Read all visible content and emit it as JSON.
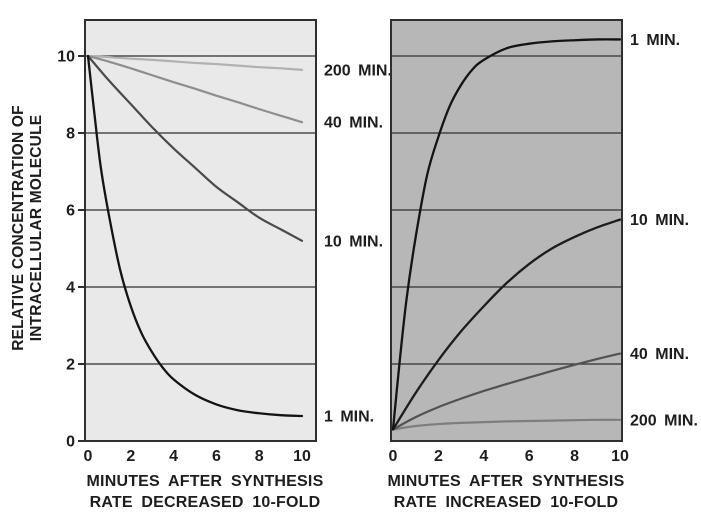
{
  "figure": {
    "ylabel": [
      "RELATIVE CONCENTRATION OF",
      "INTRACELLULAR MOLECULE"
    ],
    "text_color": "#1d1d1d",
    "frame_color": "#2f2f2f"
  },
  "chart_data": [
    {
      "type": "line",
      "panel": "synthesis-rate-decreased",
      "xlabel": [
        "MINUTES AFTER SYNTHESIS",
        "RATE DECREASED 10-FOLD"
      ],
      "ylabel": [
        "RELATIVE CONCENTRATION OF",
        "INTRACELLULAR MOLECULE"
      ],
      "xlim": [
        0,
        10
      ],
      "ylim": [
        0,
        10.9
      ],
      "xticks": [
        "0",
        "2",
        "4",
        "6",
        "8",
        "10"
      ],
      "yticks": [
        "0",
        "2",
        "4",
        "6",
        "8",
        "10"
      ],
      "grid": "horizontal",
      "legend_position": "right-gutter",
      "background": "#e9e9e9",
      "series": [
        {
          "name": "200 MIN.",
          "color": "#b1b1b1",
          "width": 2.2,
          "x": [
            0,
            1,
            2,
            3,
            4,
            5,
            6,
            7,
            8,
            9,
            10
          ],
          "y": [
            10,
            9.97,
            9.93,
            9.9,
            9.86,
            9.82,
            9.79,
            9.75,
            9.71,
            9.68,
            9.64
          ]
        },
        {
          "name": "40 MIN.",
          "color": "#8e8e8e",
          "width": 2.2,
          "x": [
            0,
            1,
            2,
            3,
            4,
            5,
            6,
            7,
            8,
            9,
            10
          ],
          "y": [
            10,
            9.85,
            9.68,
            9.5,
            9.32,
            9.15,
            8.97,
            8.8,
            8.62,
            8.45,
            8.28
          ]
        },
        {
          "name": "10 MIN.",
          "color": "#4a4a4a",
          "width": 2.2,
          "x": [
            0,
            1,
            2,
            3,
            4,
            5,
            6,
            7,
            8,
            9,
            10
          ],
          "y": [
            10,
            9.35,
            8.75,
            8.15,
            7.6,
            7.1,
            6.6,
            6.2,
            5.8,
            5.5,
            5.2
          ]
        },
        {
          "name": "1 MIN.",
          "color": "#141414",
          "width": 2.3,
          "x": [
            0,
            0.3,
            0.6,
            1,
            1.5,
            2,
            2.5,
            3,
            3.5,
            4,
            5,
            6,
            7,
            8,
            9,
            10
          ],
          "y": [
            10,
            8.5,
            7.1,
            5.8,
            4.45,
            3.5,
            2.8,
            2.3,
            1.9,
            1.6,
            1.2,
            0.95,
            0.8,
            0.72,
            0.67,
            0.65
          ]
        }
      ]
    },
    {
      "type": "line",
      "panel": "synthesis-rate-increased",
      "xlabel": [
        "MINUTES AFTER SYNTHESIS",
        "RATE INCREASED 10-FOLD"
      ],
      "xlim": [
        0,
        10
      ],
      "ylim": [
        0,
        10.9
      ],
      "xticks": [
        "0",
        "2",
        "4",
        "6",
        "8",
        "10"
      ],
      "yticks": [],
      "grid": "horizontal",
      "legend_position": "right-gutter",
      "background": "#b7b7b7",
      "series": [
        {
          "name": "200 MIN.",
          "color": "#7d7d7d",
          "width": 2.2,
          "x": [
            0,
            1,
            2,
            3,
            4,
            5,
            6,
            7,
            8,
            9,
            10
          ],
          "y": [
            0.3,
            0.39,
            0.44,
            0.47,
            0.49,
            0.51,
            0.52,
            0.53,
            0.54,
            0.55,
            0.55
          ]
        },
        {
          "name": "40 MIN.",
          "color": "#525252",
          "width": 2.2,
          "x": [
            0,
            1,
            2,
            3,
            4,
            5,
            6,
            7,
            8,
            9,
            10
          ],
          "y": [
            0.3,
            0.62,
            0.88,
            1.1,
            1.3,
            1.48,
            1.65,
            1.82,
            1.98,
            2.13,
            2.27
          ]
        },
        {
          "name": "10 MIN.",
          "color": "#1c1c1c",
          "width": 2.3,
          "x": [
            0,
            1,
            2,
            3,
            4,
            5,
            6,
            7,
            8,
            9,
            10
          ],
          "y": [
            0.3,
            1.25,
            2.1,
            2.85,
            3.5,
            4.1,
            4.6,
            5.0,
            5.3,
            5.55,
            5.75
          ]
        },
        {
          "name": "1 MIN.",
          "color": "#141414",
          "width": 2.3,
          "x": [
            0,
            0.3,
            0.6,
            1,
            1.5,
            2,
            2.5,
            3,
            3.5,
            4,
            5,
            6,
            7,
            8,
            9,
            10
          ],
          "y": [
            0.3,
            2.1,
            3.7,
            5.3,
            6.9,
            7.9,
            8.7,
            9.25,
            9.65,
            9.9,
            10.2,
            10.32,
            10.38,
            10.41,
            10.43,
            10.43
          ]
        }
      ]
    }
  ]
}
